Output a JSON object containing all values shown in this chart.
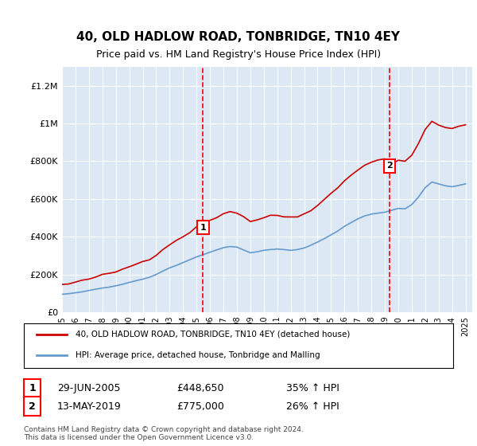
{
  "title": "40, OLD HADLOW ROAD, TONBRIDGE, TN10 4EY",
  "subtitle": "Price paid vs. HM Land Registry's House Price Index (HPI)",
  "xlim": [
    1995.0,
    2025.5
  ],
  "ylim": [
    0,
    1300000
  ],
  "yticks": [
    0,
    200000,
    400000,
    600000,
    800000,
    1000000,
    1200000
  ],
  "ytick_labels": [
    "£0",
    "£200K",
    "£400K",
    "£600K",
    "£800K",
    "£1M",
    "£1.2M"
  ],
  "xticks": [
    1995,
    1996,
    1997,
    1998,
    1999,
    2000,
    2001,
    2002,
    2003,
    2004,
    2005,
    2006,
    2007,
    2008,
    2009,
    2010,
    2011,
    2012,
    2013,
    2014,
    2015,
    2016,
    2017,
    2018,
    2019,
    2020,
    2021,
    2022,
    2023,
    2024,
    2025
  ],
  "sale1_x": 2005.49,
  "sale1_y": 448650,
  "sale1_label": "1",
  "sale1_date": "29-JUN-2005",
  "sale1_price": "£448,650",
  "sale1_hpi": "35% ↑ HPI",
  "sale2_x": 2019.36,
  "sale2_y": 775000,
  "sale2_label": "2",
  "sale2_date": "13-MAY-2019",
  "sale2_price": "£775,000",
  "sale2_hpi": "26% ↑ HPI",
  "background_color": "#dce9f5",
  "plot_bg_color": "#dce9f5",
  "grid_color": "#ffffff",
  "line1_color": "#cc0000",
  "line2_color": "#6699cc",
  "legend1_label": "40, OLD HADLOW ROAD, TONBRIDGE, TN10 4EY (detached house)",
  "legend2_label": "HPI: Average price, detached house, Tonbridge and Malling",
  "footer": "Contains HM Land Registry data © Crown copyright and database right 2024.\nThis data is licensed under the Open Government Licence v3.0.",
  "hpi_base_1995": 100000,
  "sale1_marker_y": 448650,
  "sale2_marker_y": 775000
}
